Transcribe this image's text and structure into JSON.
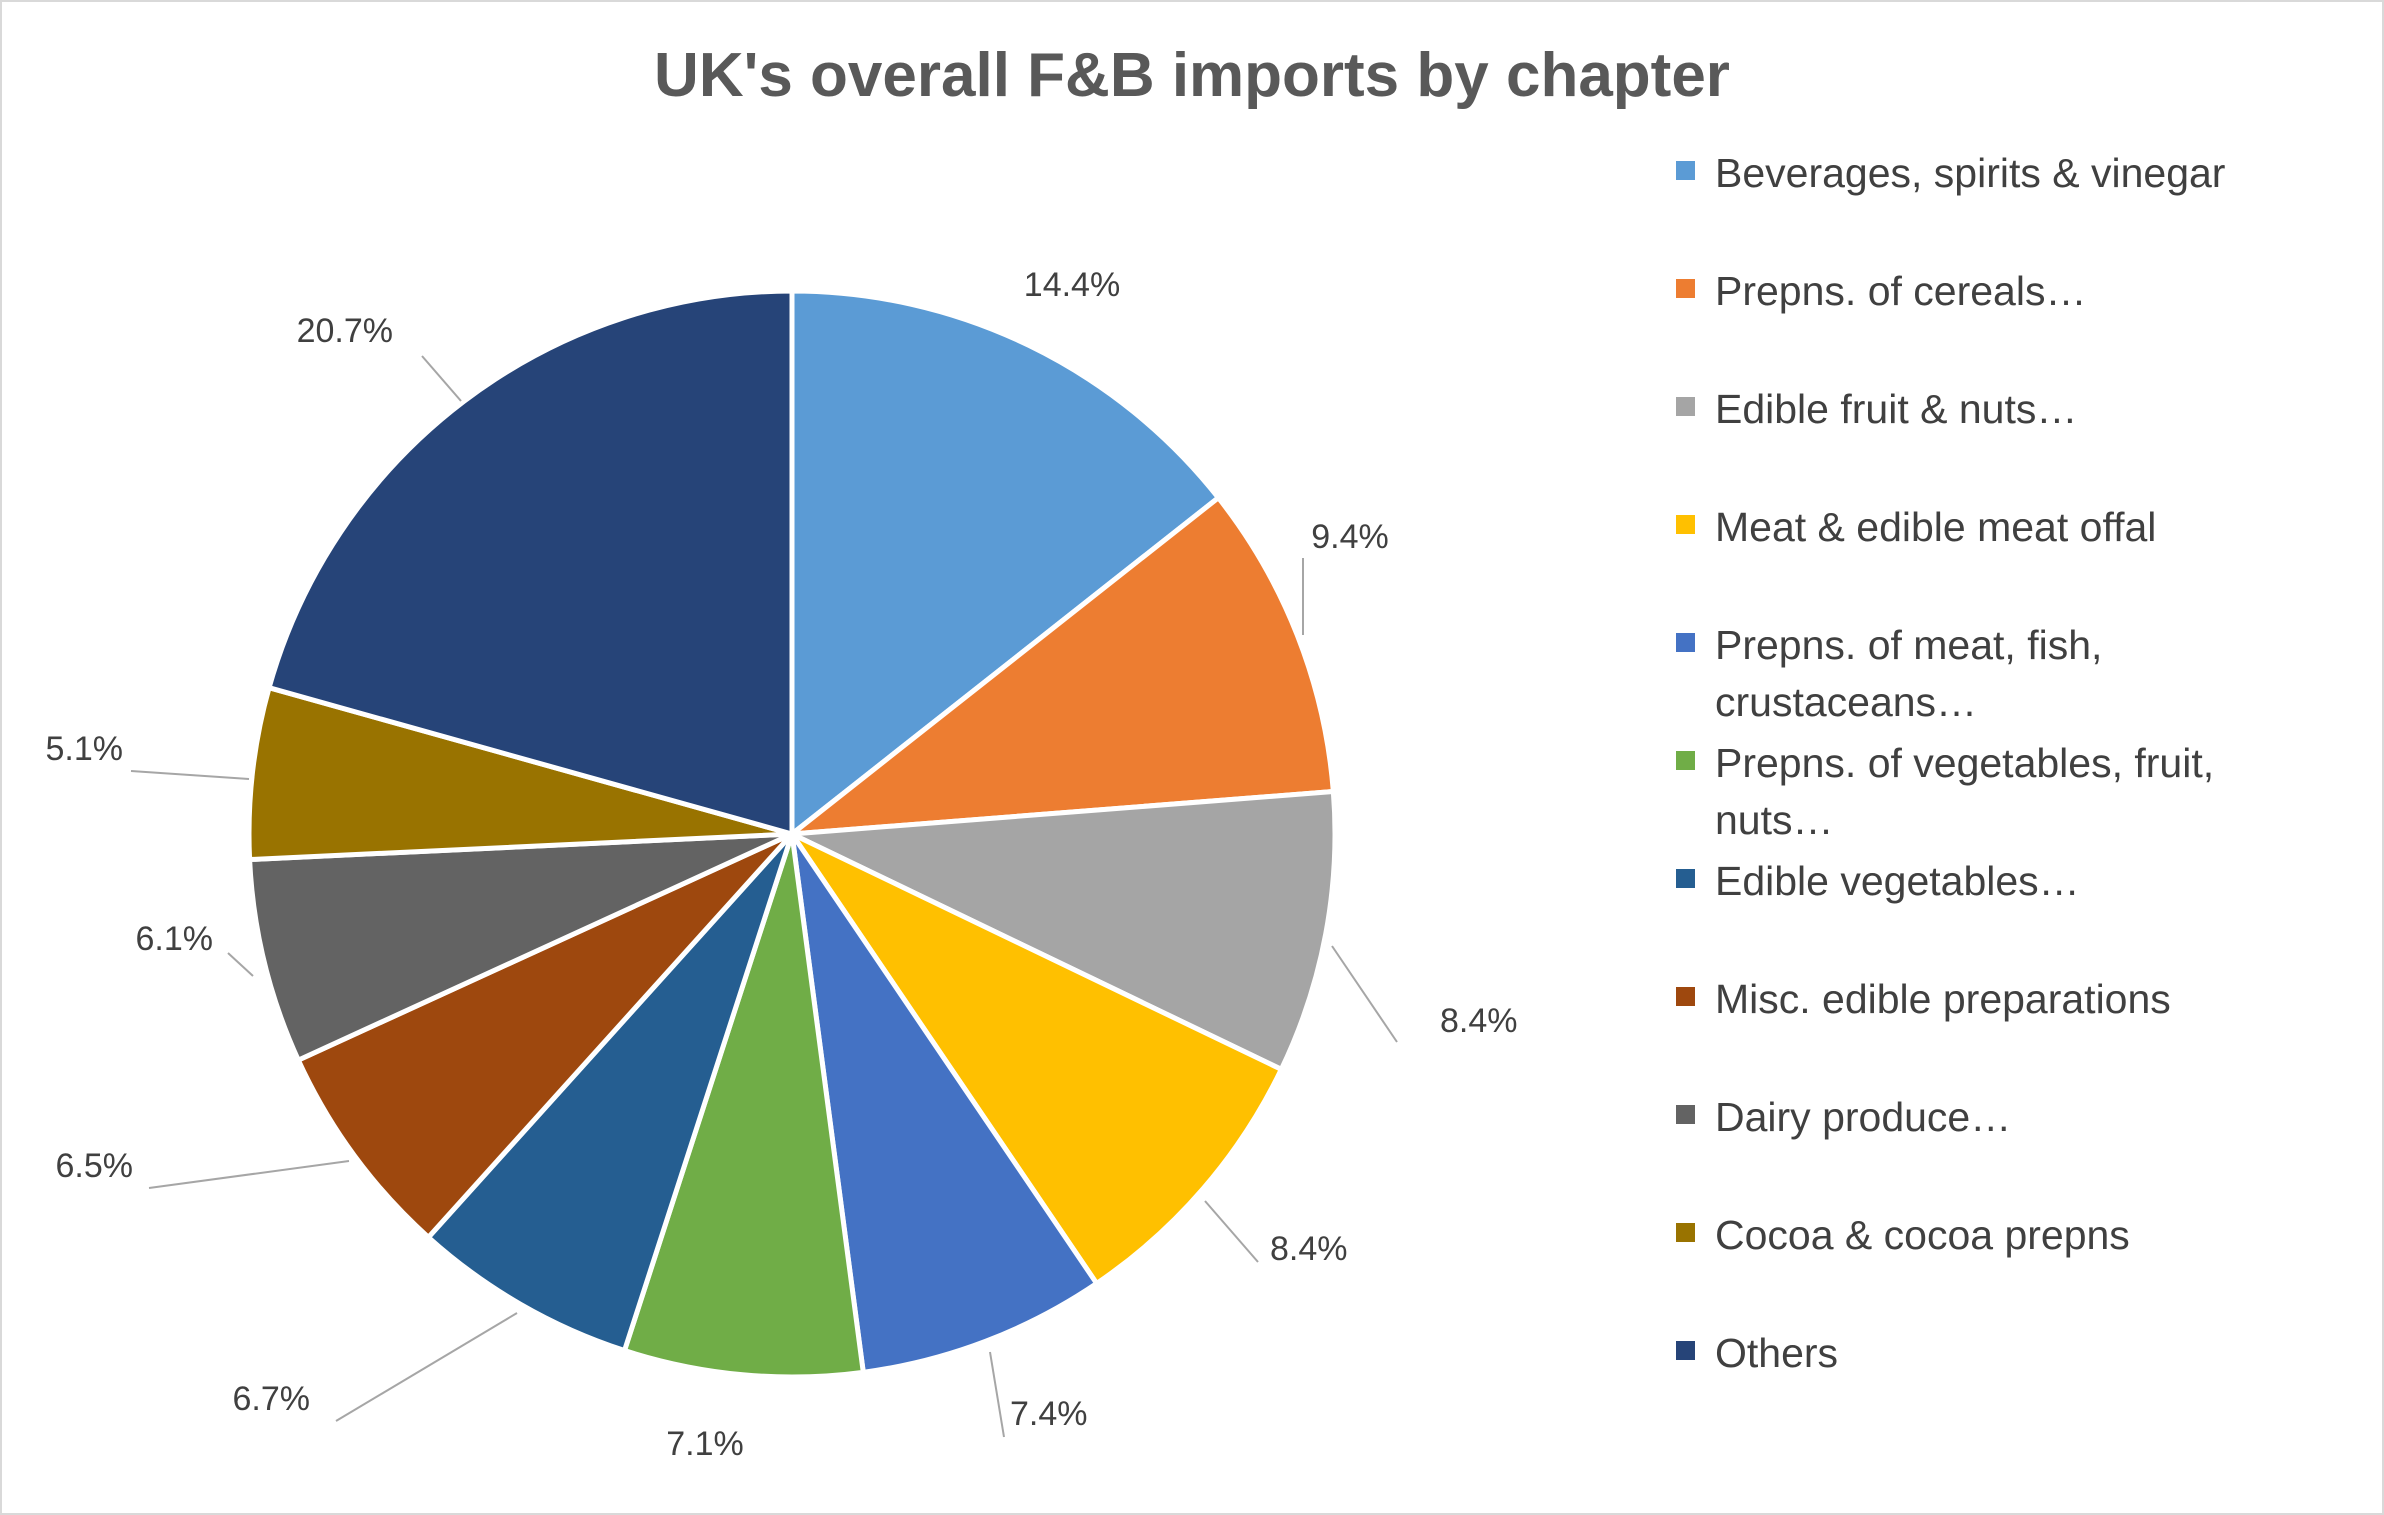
{
  "chart_data": {
    "type": "pie",
    "title": "UK's overall F&B imports by chapter",
    "legend_position": "right",
    "slices": [
      {
        "label": "Beverages, spirits & vinegar",
        "value": 14.4,
        "display": "14.4%",
        "color": "#5B9BD5"
      },
      {
        "label": "Prepns. of cereals…",
        "value": 9.4,
        "display": "9.4%",
        "color": "#ED7D31"
      },
      {
        "label": "Edible fruit & nuts…",
        "value": 8.4,
        "display": "8.4%",
        "color": "#A5A5A5"
      },
      {
        "label": "Meat & edible meat offal",
        "value": 8.4,
        "display": "8.4%",
        "color": "#FFC000"
      },
      {
        "label": "Prepns. of meat, fish, crustaceans…",
        "value": 7.4,
        "display": "7.4%",
        "color": "#4472C4"
      },
      {
        "label": "Prepns. of vegetables, fruit, nuts…",
        "value": 7.1,
        "display": "7.1%",
        "color": "#70AD47"
      },
      {
        "label": "Edible vegetables…",
        "value": 6.7,
        "display": "6.7%",
        "color": "#255E91"
      },
      {
        "label": "Misc. edible preparations",
        "value": 6.5,
        "display": "6.5%",
        "color": "#9E480E"
      },
      {
        "label": "Dairy produce…",
        "value": 6.1,
        "display": "6.1%",
        "color": "#636363"
      },
      {
        "label": "Cocoa & cocoa prepns",
        "value": 5.1,
        "display": "5.1%",
        "color": "#997300"
      },
      {
        "label": "Others",
        "value": 20.7,
        "display": "20.7%",
        "color": "#264478"
      }
    ]
  }
}
